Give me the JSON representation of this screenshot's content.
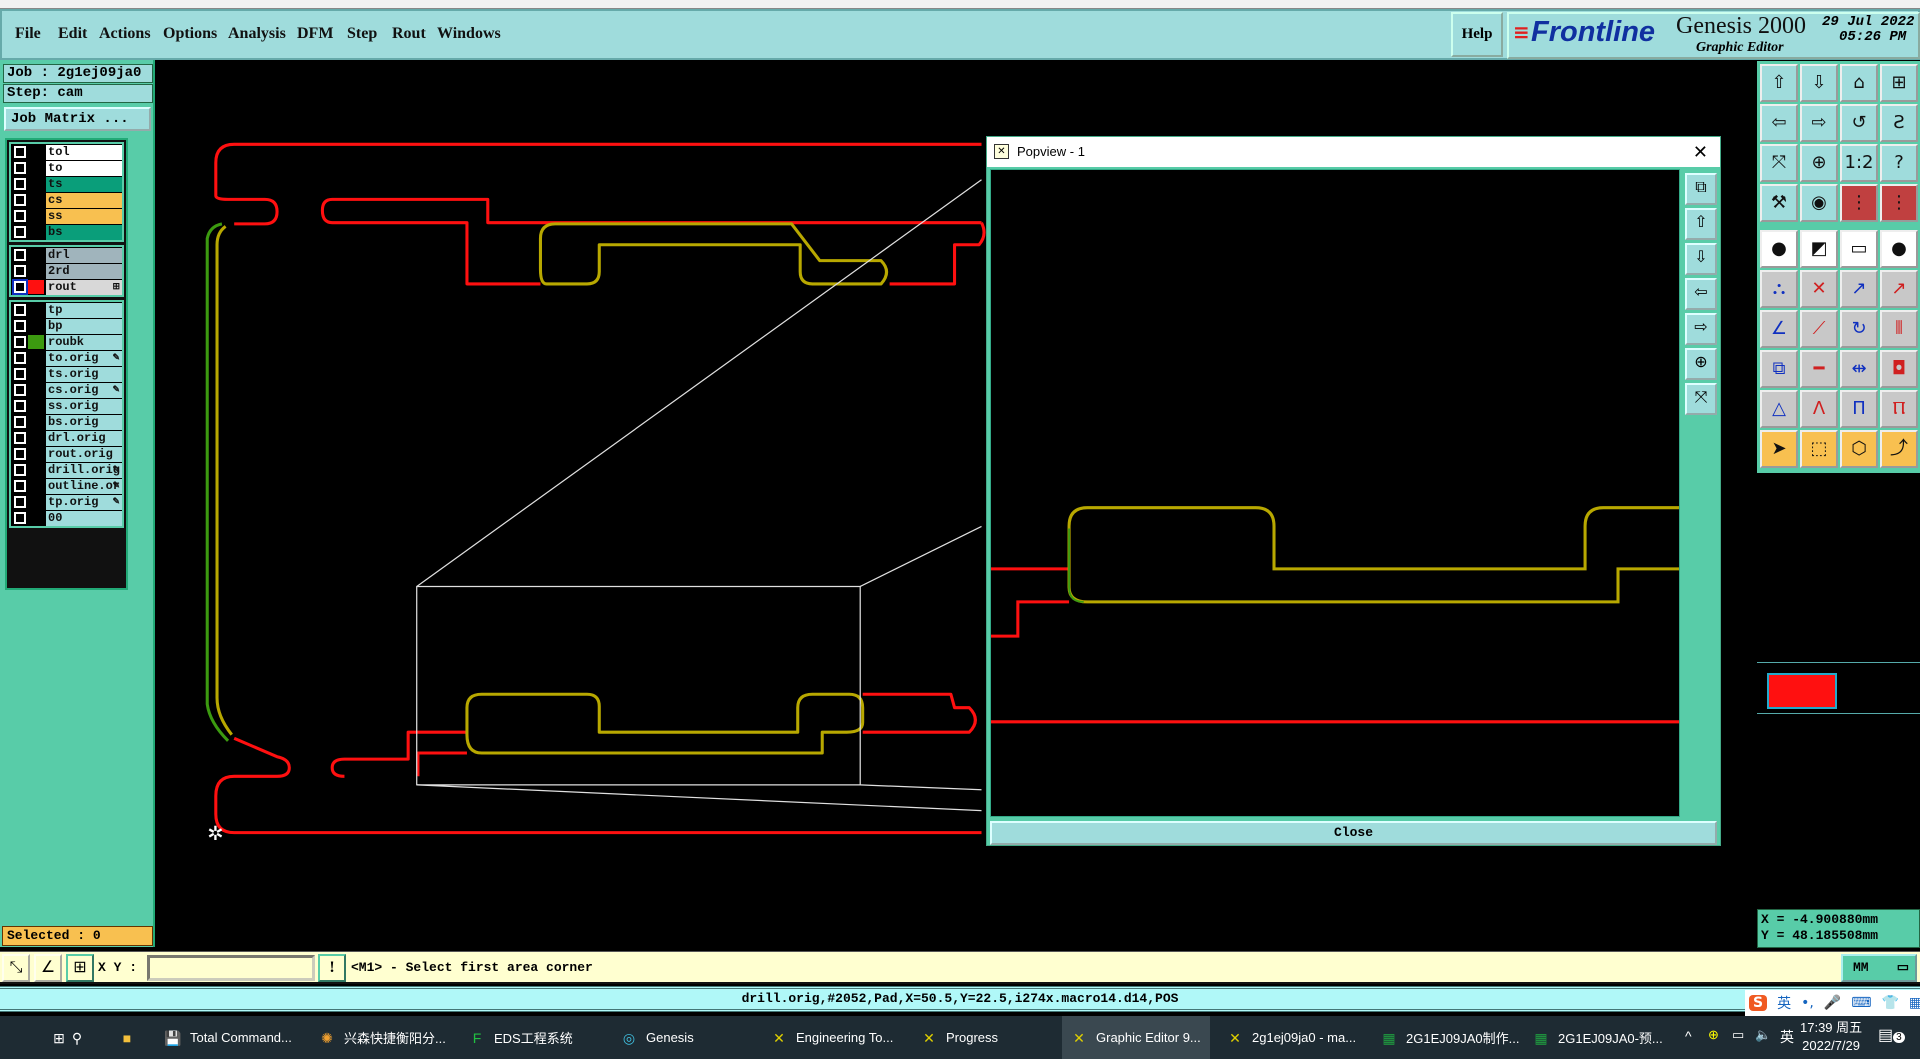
{
  "menubar": {
    "items": [
      "File",
      "Edit",
      "Actions",
      "Options",
      "Analysis",
      "DFM",
      "Step",
      "Rout",
      "Windows"
    ],
    "help": "Help"
  },
  "logo": {
    "brand": "Frontline",
    "product": "Genesis 2000",
    "subtitle": "Graphic Editor",
    "date": "29 Jul 2022",
    "time": "05:26 PM"
  },
  "left": {
    "job": "Job : 2g1ej09ja0",
    "step": "Step: cam",
    "job_matrix": "Job Matrix ...",
    "selected": "Selected : 0"
  },
  "layers": [
    [
      {
        "name": "tol",
        "color": "#ffffff"
      },
      {
        "name": "to",
        "color": "#ffffff"
      },
      {
        "name": "ts",
        "color": "#0a9e7a"
      },
      {
        "name": "cs",
        "color": "#f8c050"
      },
      {
        "name": "ss",
        "color": "#f8c050"
      },
      {
        "name": "bs",
        "color": "#0a9e7a"
      }
    ],
    [
      {
        "name": "drl",
        "color": "#a0b4bc"
      },
      {
        "name": "2rd",
        "color": "#a0b4bc"
      },
      {
        "name": "rout",
        "color": "#d8d8d8",
        "swatch": "#ff1010",
        "active": true,
        "marker": "⊞"
      }
    ],
    [
      {
        "name": "tp",
        "color": "#9fdcdc"
      },
      {
        "name": "bp",
        "color": "#9fdcdc"
      },
      {
        "name": "roubk",
        "color": "#9fdcdc",
        "swatch": "#3c9a10"
      },
      {
        "name": "to.orig",
        "color": "#9fdcdc",
        "marker": "✎"
      },
      {
        "name": "ts.orig",
        "color": "#9fdcdc"
      },
      {
        "name": "cs.orig",
        "color": "#9fdcdc",
        "marker": "✎"
      },
      {
        "name": "ss.orig",
        "color": "#9fdcdc"
      },
      {
        "name": "bs.orig",
        "color": "#9fdcdc"
      },
      {
        "name": "drl.orig",
        "color": "#9fdcdc"
      },
      {
        "name": "rout.orig",
        "color": "#9fdcdc"
      },
      {
        "name": "drill.orig",
        "color": "#9fdcdc",
        "marker": "✎"
      },
      {
        "name": "outline.or",
        "color": "#9fdcdc",
        "marker": "✎"
      },
      {
        "name": "tp.orig",
        "color": "#9fdcdc",
        "marker": "✎"
      },
      {
        "name": "00",
        "color": "#9fdcdc"
      }
    ]
  ],
  "popview": {
    "title": "Popview - 1",
    "close": "Close",
    "buttons": [
      "zoom-back-icon",
      "pan-up-icon",
      "pan-down-icon",
      "pan-left-icon",
      "pan-right-icon",
      "zoom-in-icon",
      "zoom-out-icon"
    ]
  },
  "toolbar": [
    [
      "pan-up-icon",
      "pan-down-icon",
      "home-icon",
      "grid-xy-icon"
    ],
    [
      "pan-left-icon",
      "pan-right-icon",
      "undo-view-icon",
      "redraw-icon"
    ],
    [
      "zoom-out-icon",
      "zoom-in-icon",
      "scale-1-2-icon",
      "help-icon"
    ],
    [
      "tools-icon",
      "snap-icon",
      "netlist-icon",
      "netlist-alt-icon"
    ],
    [
      "pad-move-icon",
      "area-select-icon",
      "ruler-icon",
      "pad-icon"
    ],
    [
      "connect-icon",
      "delete-icon",
      "move-icon",
      "copy-icon"
    ],
    [
      "line-icon",
      "line-edit-icon",
      "rotate-icon",
      "mirror-icon"
    ],
    [
      "resize-icon",
      "split-line-icon",
      "measure-icon",
      "contour-icon"
    ],
    [
      "angle-icon",
      "triangle-icon",
      "arch-icon",
      "arch-cut-icon"
    ],
    [
      "select-pointer-icon",
      "select-box-icon",
      "select-polygon-icon",
      "select-net-icon"
    ]
  ],
  "coords": {
    "x": "X = -4.900880mm",
    "y": "Y = 48.185508mm"
  },
  "cmdbar": {
    "xy_label": "X Y :",
    "xy_value": "",
    "prompt": "<M1> - Select first area corner",
    "units": "MM"
  },
  "status": "drill.orig,#2052,Pad,X=50.5,Y=22.5,i274x.macro14.d14,POS",
  "colors": {
    "rout": "#ff1010",
    "olive": "#b8a800",
    "green": "#3c9a10",
    "panel": "#58cca8",
    "menubar": "#9fdcdc"
  },
  "taskbar": {
    "items": [
      "Total Command...",
      "兴森快捷衡阳分...",
      "EDS工程系统",
      "Genesis",
      "Engineering To...",
      "Progress",
      "Graphic Editor 9...",
      "2g1ej09ja0 - ma...",
      "2G1EJ09JA0制作...",
      "2G1EJ09JA0-预..."
    ],
    "active": "Graphic Editor 9...",
    "time": "17:39 周五",
    "date": "2022/7/29",
    "ime": "英",
    "notifications": "3",
    "ime_bar": "英"
  }
}
